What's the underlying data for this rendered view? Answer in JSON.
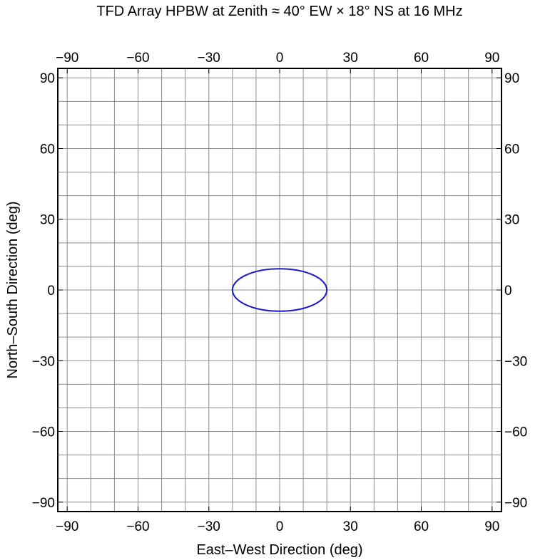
{
  "chart_data": {
    "type": "line",
    "title": "TFD Array HPBW at Zenith ≈ 40° EW × 18° NS at 16 MHz",
    "xlabel": "East–West Direction (deg)",
    "ylabel": "North–South Direction (deg)",
    "xlim": [
      -94,
      94
    ],
    "ylim": [
      -94,
      94
    ],
    "xticks": [
      -90,
      -60,
      -30,
      0,
      30,
      60,
      90
    ],
    "yticks": [
      -90,
      -60,
      -30,
      0,
      30,
      60,
      90
    ],
    "xtick_labels": [
      "−90",
      "−60",
      "−30",
      "0",
      "30",
      "60",
      "90"
    ],
    "ytick_labels": [
      "−90",
      "−60",
      "−30",
      "0",
      "30",
      "60",
      "90"
    ],
    "grid": true,
    "grid_step": 10,
    "series": [
      {
        "shape": "ellipse",
        "color": "#1a1acc",
        "center": [
          0,
          0
        ],
        "semi_axis_x": 20,
        "semi_axis_y": 9,
        "x": [
          20,
          17.32,
          10,
          0,
          -10,
          -17.32,
          -20,
          -17.32,
          -10,
          0,
          10,
          17.32,
          20
        ],
        "y": [
          0,
          4.5,
          7.79,
          9,
          7.79,
          4.5,
          0,
          -4.5,
          -7.79,
          -9,
          -7.79,
          -4.5,
          0
        ]
      }
    ]
  }
}
